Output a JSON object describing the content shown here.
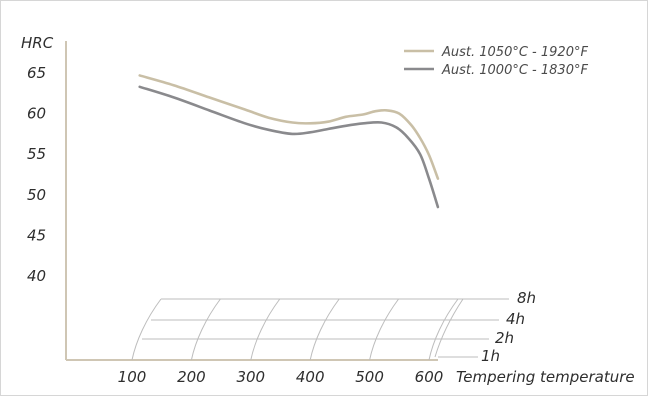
{
  "chart_data": {
    "type": "line",
    "ylabel": "HRC",
    "xlabel": "Tempering temperature",
    "yticks": [
      65,
      60,
      55,
      50,
      45,
      40
    ],
    "xticks": [
      100,
      200,
      300,
      400,
      500,
      600
    ],
    "xlim": [
      100,
      600
    ],
    "ylim": [
      40,
      65
    ],
    "legend_position": "top-right",
    "series": [
      {
        "name": "Aust. 1050°C - 1920°F",
        "color": "#c9bfa6",
        "x": [
          113,
          170,
          230,
          290,
          330,
          370,
          400,
          430,
          460,
          490,
          510,
          530,
          550,
          570,
          585,
          600,
          615
        ],
        "y": [
          64.7,
          63.5,
          62.0,
          60.5,
          59.5,
          58.9,
          58.8,
          59.0,
          59.6,
          59.9,
          60.3,
          60.4,
          60.0,
          58.6,
          57.0,
          54.9,
          52.0
        ]
      },
      {
        "name": "Aust. 1000°C - 1830°F",
        "color": "#8a8a8d",
        "x": [
          113,
          170,
          230,
          290,
          330,
          370,
          400,
          430,
          460,
          490,
          520,
          545,
          565,
          585,
          600,
          615
        ],
        "y": [
          63.3,
          62.0,
          60.4,
          58.8,
          58.0,
          57.5,
          57.7,
          58.1,
          58.5,
          58.8,
          58.9,
          58.3,
          57.0,
          55.0,
          52.0,
          48.5
        ]
      }
    ],
    "time_axis": {
      "labels": [
        "8h",
        "4h",
        "2h",
        "1h"
      ]
    }
  }
}
